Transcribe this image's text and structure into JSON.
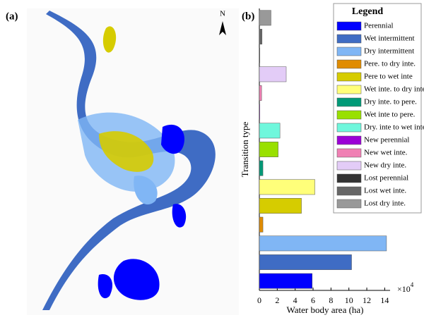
{
  "map": {
    "panel_label": "(a)",
    "north_label": "N"
  },
  "chart_data": {
    "type": "bar",
    "orientation": "horizontal",
    "panel_label": "(b)",
    "legend_title": "Legend",
    "x_label": "Water body area (ha)",
    "y_label": "Transition type",
    "x_scale_base": "×10",
    "x_scale_exponent": "4",
    "categories": [
      "Perennial",
      "Wet intermittent",
      "Dry intermittent",
      "Pere. to dry inte.",
      "Pere to wet inte",
      "Wet inte. to dry inte.",
      "Dry inte. to pere.",
      "Wet inte to pere.",
      "Dry. inte to wet inte.",
      "New perennial",
      "New wet inte.",
      "New dry inte.",
      "Lost perennial",
      "Lost wet inte.",
      "Lost dry inte."
    ],
    "values": [
      5.9,
      10.3,
      14.2,
      0.4,
      4.7,
      6.2,
      0.4,
      2.1,
      2.3,
      0.05,
      0.25,
      3.0,
      0.05,
      0.3,
      1.3
    ],
    "colors": [
      "#0000ff",
      "#3f6cc4",
      "#80b6f5",
      "#e08c00",
      "#d6cc00",
      "#ffff7a",
      "#009977",
      "#99e000",
      "#6ff7dc",
      "#9b00d6",
      "#f080b4",
      "#e3ccf7",
      "#333333",
      "#666666",
      "#999999"
    ],
    "xlim": [
      0,
      14.6
    ],
    "xticks": [
      0,
      2,
      4,
      6,
      8,
      10,
      12,
      14
    ]
  }
}
